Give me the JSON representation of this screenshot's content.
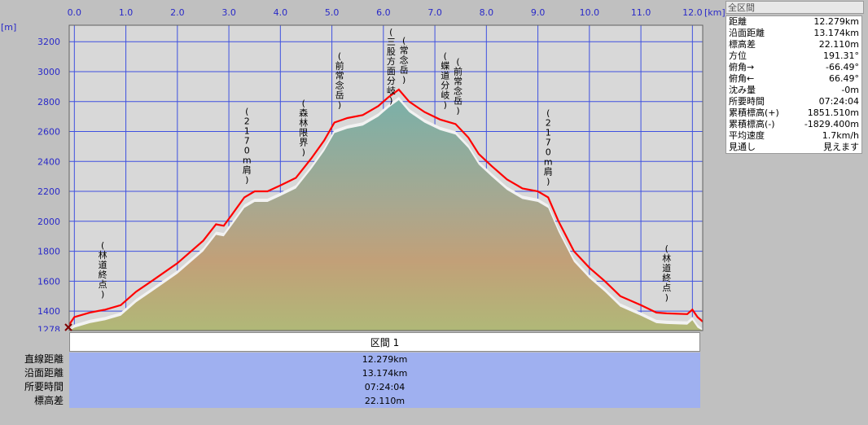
{
  "chart_data": {
    "type": "area",
    "x_unit": "[km]",
    "y_unit": "[m]",
    "xlim": [
      -0.1,
      12.2
    ],
    "ylim": [
      1270,
      3310
    ],
    "x_ticks": [
      0,
      1,
      2,
      3,
      4,
      5,
      6,
      7,
      8,
      9,
      10,
      11,
      12
    ],
    "x_tick_labels": [
      "0.0",
      "1.0",
      "2.0",
      "3.0",
      "4.0",
      "5.0",
      "6.0",
      "7.0",
      "8.0",
      "9.0",
      "10.0",
      "11.0",
      "12.0"
    ],
    "y_ticks": [
      1278,
      1400,
      1600,
      1800,
      2000,
      2200,
      2400,
      2600,
      2800,
      3000,
      3200
    ],
    "y_tick_labels": [
      "1278",
      "1400",
      "1600",
      "1800",
      "2000",
      "2200",
      "2400",
      "2600",
      "2800",
      "3000",
      "3200"
    ],
    "grid": true,
    "series": [
      {
        "color": "#ff0000",
        "x": [
          -0.1,
          0.0,
          0.3,
          0.6,
          0.9,
          1.2,
          1.5,
          2.0,
          2.5,
          2.75,
          2.9,
          3.05,
          3.3,
          3.5,
          3.75,
          4.0,
          4.3,
          4.6,
          4.85,
          5.05,
          5.3,
          5.6,
          5.9,
          6.1,
          6.3,
          6.5,
          6.8,
          7.1,
          7.4,
          7.65,
          7.85,
          8.1,
          8.4,
          8.7,
          9.0,
          9.2,
          9.4,
          9.7,
          10.0,
          10.3,
          10.6,
          11.0,
          11.3,
          11.5,
          11.9,
          12.0,
          12.1,
          12.2
        ],
        "values": [
          1310,
          1360,
          1390,
          1410,
          1440,
          1530,
          1600,
          1720,
          1870,
          1980,
          1970,
          2040,
          2160,
          2200,
          2200,
          2240,
          2290,
          2420,
          2540,
          2660,
          2690,
          2710,
          2770,
          2830,
          2880,
          2800,
          2730,
          2680,
          2650,
          2560,
          2450,
          2370,
          2280,
          2220,
          2200,
          2160,
          2000,
          1800,
          1690,
          1600,
          1500,
          1440,
          1390,
          1385,
          1380,
          1410,
          1360,
          1330
        ]
      }
    ],
    "annotations": [
      {
        "x": 0.55,
        "text": "(林道終点)"
      },
      {
        "x": 3.35,
        "text": "(2170m肩)"
      },
      {
        "x": 4.45,
        "text": "(森林限界)"
      },
      {
        "x": 5.15,
        "text": "(前常念岳)"
      },
      {
        "x": 6.15,
        "text": "(三股方面分岐)"
      },
      {
        "x": 6.4,
        "text": "(常念岳)"
      },
      {
        "x": 7.2,
        "text": "(蝶道分岐)"
      },
      {
        "x": 7.45,
        "text": "(前常念岳)"
      },
      {
        "x": 9.2,
        "text": "(2170m肩)"
      },
      {
        "x": 11.5,
        "text": "(林道終点)"
      }
    ]
  },
  "side_panel": {
    "title": "全区間",
    "rows": [
      {
        "label": "距離",
        "value": "12.279km"
      },
      {
        "label": "沿面距離",
        "value": "13.174km"
      },
      {
        "label": "標高差",
        "value": "22.110m"
      },
      {
        "label": "方位",
        "value": "191.31°"
      },
      {
        "label": "俯角→",
        "value": "-66.49°"
      },
      {
        "label": "俯角←",
        "value": "66.49°"
      },
      {
        "label": "沈み量",
        "value": "-0m"
      },
      {
        "label": "所要時間",
        "value": "07:24:04"
      },
      {
        "label": "累積標高(+)",
        "value": "1851.510m"
      },
      {
        "label": "累積標高(-)",
        "value": "-1829.400m"
      },
      {
        "label": "平均速度",
        "value": "1.7km/h"
      },
      {
        "label": "見通し",
        "value": "見えます"
      }
    ]
  },
  "section": {
    "title": "区間 1",
    "rows": [
      {
        "label": "直線距離",
        "value": "12.279km"
      },
      {
        "label": "沿面距離",
        "value": "13.174km"
      },
      {
        "label": "所要時間",
        "value": "07:24:04"
      },
      {
        "label": "標高差",
        "value": "22.110m"
      }
    ]
  }
}
